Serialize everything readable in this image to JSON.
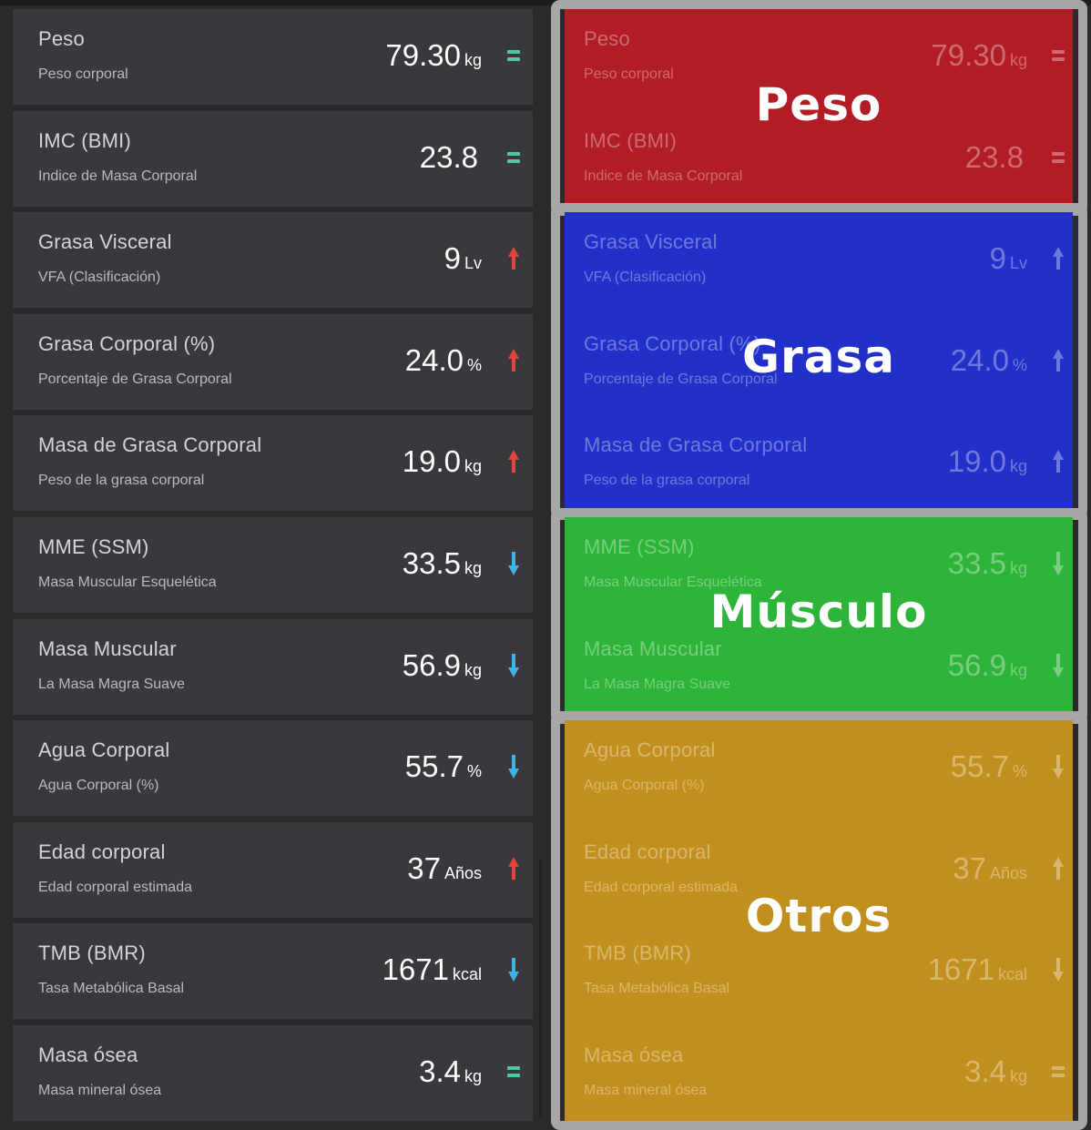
{
  "metrics": [
    {
      "title": "Peso",
      "subtitle": "Peso corporal",
      "value": "79.30",
      "unit": "kg",
      "trend": "equal"
    },
    {
      "title": "IMC (BMI)",
      "subtitle": "Indice de Masa Corporal",
      "value": "23.8",
      "unit": "",
      "trend": "equal"
    },
    {
      "title": "Grasa Visceral",
      "subtitle": "VFA (Clasificación)",
      "value": "9",
      "unit": "Lv",
      "trend": "up"
    },
    {
      "title": "Grasa Corporal (%)",
      "subtitle": "Porcentaje de Grasa Corporal",
      "value": "24.0",
      "unit": "%",
      "trend": "up"
    },
    {
      "title": "Masa de Grasa Corporal",
      "subtitle": "Peso de la grasa corporal",
      "value": "19.0",
      "unit": "kg",
      "trend": "up"
    },
    {
      "title": "MME (SSM)",
      "subtitle": "Masa Muscular Esquelética",
      "value": "33.5",
      "unit": "kg",
      "trend": "down"
    },
    {
      "title": "Masa Muscular",
      "subtitle": "La Masa Magra Suave",
      "value": "56.9",
      "unit": "kg",
      "trend": "down"
    },
    {
      "title": "Agua Corporal",
      "subtitle": "Agua Corporal (%)",
      "value": "55.7",
      "unit": "%",
      "trend": "down"
    },
    {
      "title": "Edad corporal",
      "subtitle": "Edad corporal estimada",
      "value": "37",
      "unit": "Años",
      "trend": "up"
    },
    {
      "title": "TMB (BMR)",
      "subtitle": "Tasa Metabólica Basal",
      "value": "1671",
      "unit": "kcal",
      "trend": "down"
    },
    {
      "title": "Masa ósea",
      "subtitle": "Masa mineral ósea",
      "value": "3.4",
      "unit": "kg",
      "trend": "equal"
    }
  ],
  "groups": [
    {
      "label": "Peso",
      "color": "#b21c24",
      "indices": [
        0,
        1
      ]
    },
    {
      "label": "Grasa",
      "color": "#2130c8",
      "indices": [
        2,
        3,
        4
      ]
    },
    {
      "label": "Músculo",
      "color": "#2fb43a",
      "indices": [
        5,
        6
      ]
    },
    {
      "label": "Otros",
      "color": "#c18f1e",
      "indices": [
        7,
        8,
        9,
        10
      ]
    }
  ],
  "colors": {
    "background": "#2b292c",
    "card": "#3a383c",
    "equal": "#4ec9a6",
    "up": "#e2463b",
    "down": "#3fb2e6",
    "group_border": "#a7a5a8"
  },
  "icons": {
    "equal": "equal-icon",
    "up": "arrow-up-icon",
    "down": "arrow-down-icon"
  }
}
